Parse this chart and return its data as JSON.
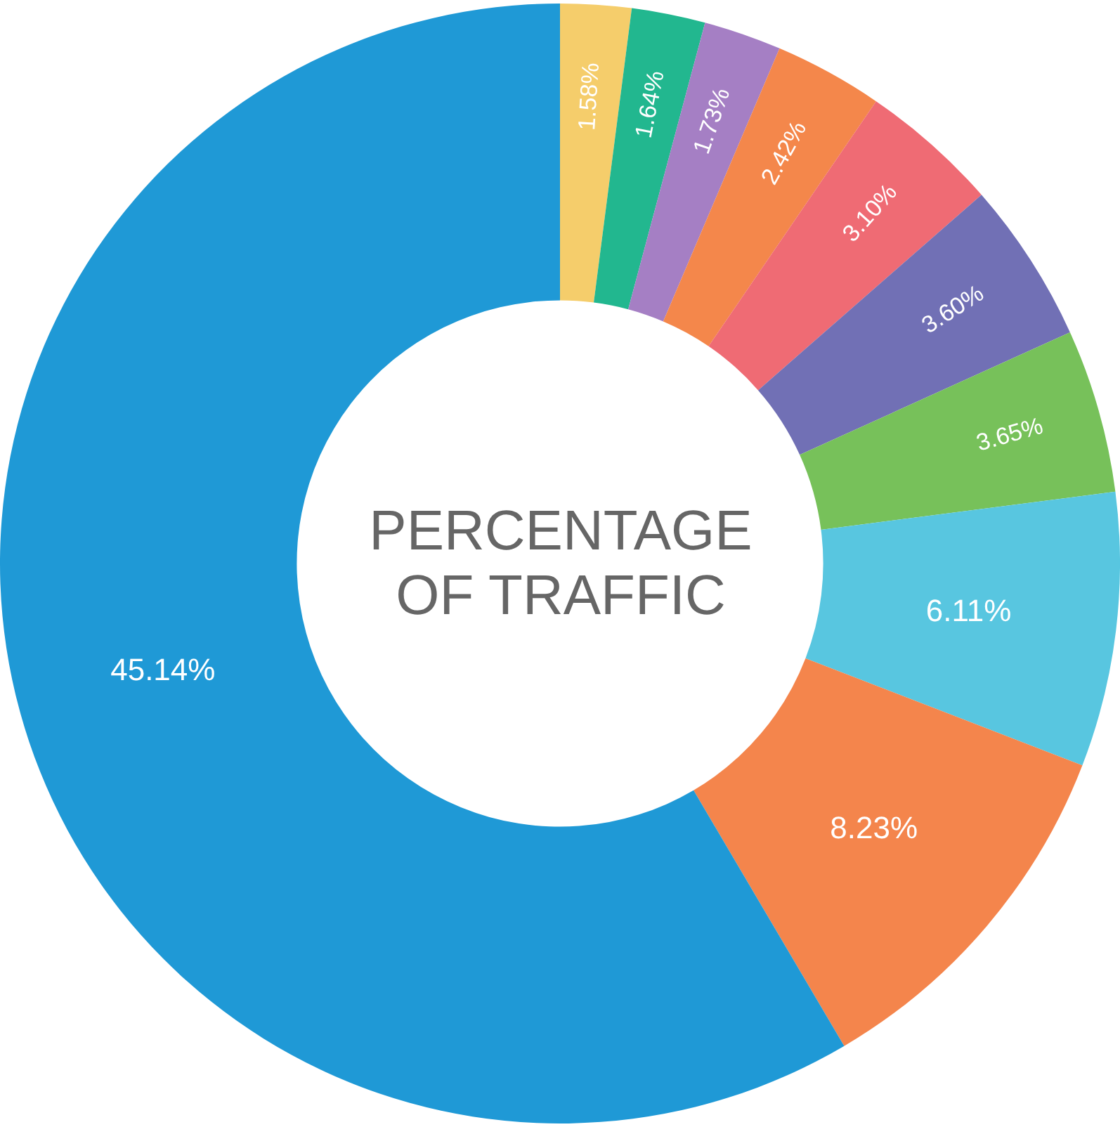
{
  "chart_data": {
    "type": "donut",
    "title": "PERCENTAGE OF TRAFFIC",
    "categories": [
      null,
      null,
      null,
      null,
      null,
      null,
      null,
      null,
      null,
      null
    ],
    "values": [
      1.58,
      1.64,
      1.73,
      2.42,
      3.1,
      3.6,
      3.65,
      6.11,
      8.23,
      45.14
    ],
    "value_labels": [
      "1.58%",
      "1.64%",
      "1.73%",
      "2.42%",
      "3.10%",
      "3.60%",
      "3.65%",
      "6.11%",
      "8.23%",
      "45.14%"
    ],
    "colors": [
      "#f5cd6b",
      "#22b78f",
      "#a57fc4",
      "#f4874b",
      "#ef6b74",
      "#7170b5",
      "#77c15a",
      "#58c6e0",
      "#f4854c",
      "#1f99d6"
    ]
  }
}
